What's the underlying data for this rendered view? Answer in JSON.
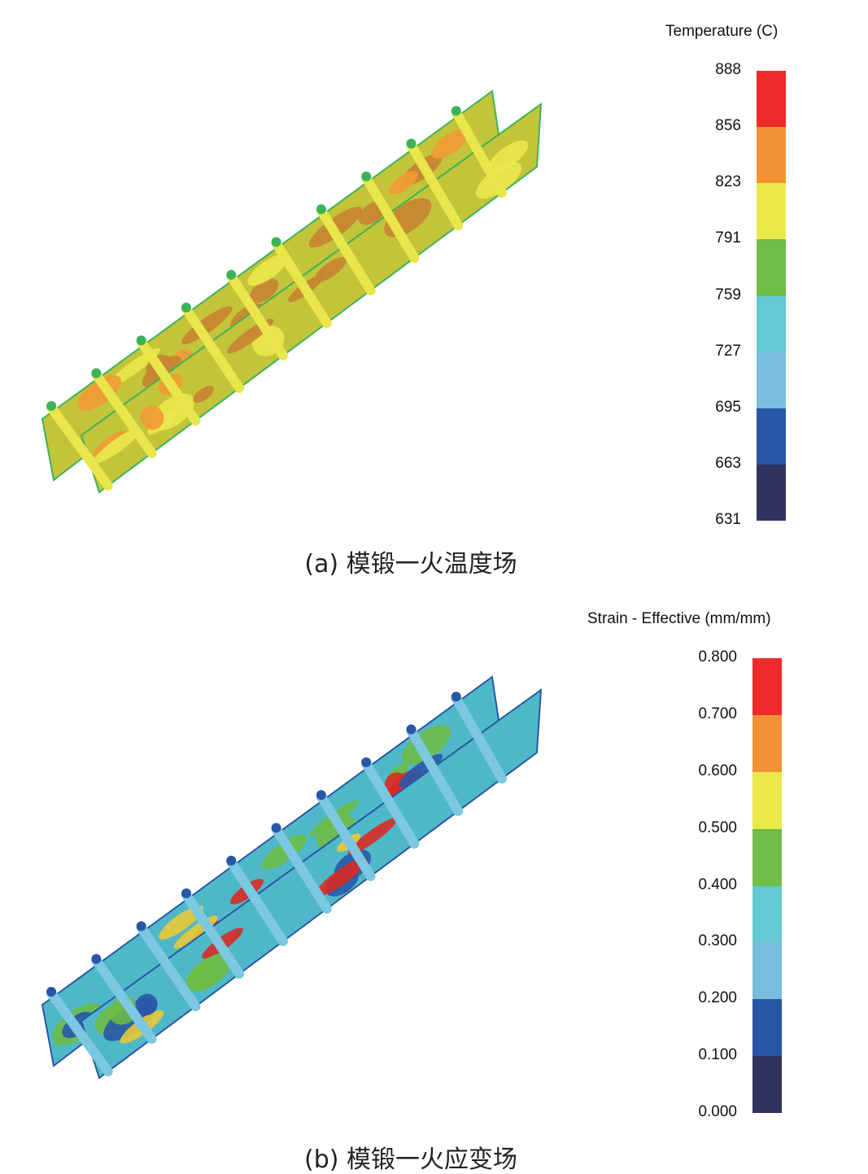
{
  "panels": [
    {
      "caption": "(a) 模锻一火温度场",
      "legend_title": "Temperature (C)",
      "ticks": [
        "888",
        "856",
        "823",
        "791",
        "759",
        "727",
        "695",
        "663",
        "631"
      ],
      "colors": [
        "#ec2b2a",
        "#f39234",
        "#ebe84b",
        "#70bd47",
        "#63c9d3",
        "#78bedc",
        "#2857a7",
        "#31335f"
      ],
      "base_color": "#c3c43a",
      "rib_color": "#e8e64a",
      "edge_color": "#3bb35a",
      "patch_colors": [
        "#c88432",
        "#f29a34",
        "#ebe84b"
      ]
    },
    {
      "caption": "(b) 模锻一火应变场",
      "legend_title": "Strain - Effective (mm/mm)",
      "ticks": [
        "0.800",
        "0.700",
        "0.600",
        "0.500",
        "0.400",
        "0.300",
        "0.200",
        "0.100",
        "0.000"
      ],
      "colors": [
        "#ec2b2a",
        "#f39234",
        "#ebe84b",
        "#70bd47",
        "#63c9d3",
        "#78bedc",
        "#2857a7",
        "#31335f"
      ],
      "base_color": "#4fb8c8",
      "rib_color": "#7cc7e2",
      "edge_color": "#2857a7",
      "patch_colors": [
        "#d92a25",
        "#e8c93a",
        "#6cbd47",
        "#2a58a8"
      ]
    }
  ]
}
